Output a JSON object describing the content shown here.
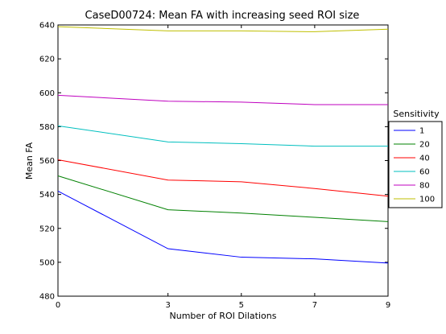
{
  "chart_data": {
    "type": "line",
    "title": "CaseD00724: Mean FA with increasing seed ROI size",
    "xlabel": "Number of ROI Dilations",
    "ylabel": "Mean FA",
    "x": [
      0,
      3,
      5,
      7,
      9
    ],
    "xticks": [
      0,
      3,
      5,
      7,
      9
    ],
    "yticks": [
      480,
      500,
      520,
      540,
      560,
      580,
      600,
      620,
      640
    ],
    "xlim": [
      0,
      9
    ],
    "ylim": [
      480,
      640
    ],
    "grid": false,
    "legend": {
      "title": "Sensitivity",
      "placement": "right-outside"
    },
    "series": [
      {
        "name": "1",
        "color": "#0000ff",
        "values": [
          542,
          508,
          503,
          502,
          499.5
        ]
      },
      {
        "name": "20",
        "color": "#008000",
        "values": [
          551,
          531,
          529,
          526.5,
          524
        ]
      },
      {
        "name": "40",
        "color": "#ff0000",
        "values": [
          560.5,
          548.5,
          547.5,
          543.5,
          539
        ]
      },
      {
        "name": "60",
        "color": "#00bfbf",
        "values": [
          580.5,
          571,
          570,
          568.5,
          568.5
        ]
      },
      {
        "name": "80",
        "color": "#bf00bf",
        "values": [
          598.5,
          595,
          594.5,
          593,
          593
        ]
      },
      {
        "name": "100",
        "color": "#bfbf00",
        "values": [
          639,
          636.5,
          636.5,
          636,
          637.5
        ]
      }
    ]
  }
}
